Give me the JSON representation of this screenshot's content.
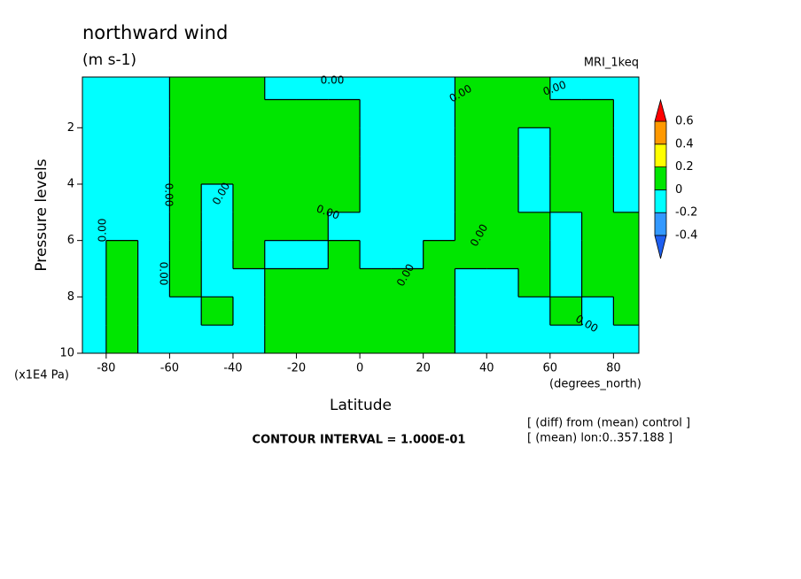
{
  "chart_data": {
    "type": "contour",
    "title": "northward wind",
    "subtitle": "(m s-1)",
    "dataset": "MRI_1keq",
    "x_label": "Latitude",
    "x_units": "(degrees_north)",
    "y_label": "Pressure levels",
    "y_units": "(x1E4 Pa)",
    "contour_interval": "CONTOUR INTERVAL = 1.000E-01",
    "notes": [
      "[ (diff) from (mean) control ]",
      "[ (mean) lon:0..357.188 ]"
    ],
    "contour_labels": [
      "0.00",
      "0.00",
      "0.00",
      "0.00",
      "0.00",
      "0.00",
      "0.00",
      "0.00",
      "0.00",
      "0.00",
      "0.00"
    ],
    "xlim": [
      -87.5,
      88
    ],
    "xticks": [
      -80,
      -60,
      -40,
      -20,
      0,
      20,
      40,
      60,
      80
    ],
    "ylim": [
      10,
      0.2
    ],
    "yticks": [
      2,
      4,
      6,
      8,
      10
    ],
    "levels": [
      -0.4,
      -0.2,
      0,
      0.2,
      0.4,
      0.6
    ],
    "colors": [
      "#1e5ff0",
      "#3399ff",
      "#00ffff",
      "#00e600",
      "#ffff00",
      "#ff9900",
      "#ff0000"
    ],
    "x": [
      -85,
      -75,
      -65,
      -55,
      -45,
      -35,
      -25,
      -15,
      -5,
      5,
      15,
      25,
      35,
      45,
      55,
      65,
      75,
      85
    ],
    "y": [
      0.5,
      1.5,
      2.5,
      3.5,
      4.5,
      5.5,
      6.5,
      7.5,
      8.5,
      9.5
    ],
    "z": [
      [
        -0.1,
        -0.1,
        -0.1,
        0.1,
        0.1,
        0.1,
        -0.1,
        -0.1,
        -0.1,
        -0.1,
        -0.1,
        -0.1,
        0.1,
        0.1,
        0.1,
        -0.1,
        -0.1,
        -0.1
      ],
      [
        -0.1,
        -0.1,
        -0.1,
        0.1,
        0.1,
        0.1,
        0.1,
        0.1,
        0.1,
        -0.1,
        -0.1,
        -0.1,
        0.1,
        0.1,
        0.1,
        0.1,
        0.1,
        -0.1
      ],
      [
        -0.1,
        -0.1,
        -0.1,
        0.1,
        0.1,
        0.1,
        0.1,
        0.1,
        0.1,
        -0.1,
        -0.1,
        -0.1,
        0.1,
        0.1,
        -0.1,
        0.1,
        0.1,
        -0.1
      ],
      [
        -0.1,
        -0.1,
        -0.1,
        0.1,
        0.1,
        0.1,
        0.1,
        0.1,
        0.1,
        -0.1,
        -0.1,
        -0.1,
        0.1,
        0.1,
        -0.1,
        0.1,
        0.1,
        -0.1
      ],
      [
        -0.1,
        -0.1,
        -0.1,
        0.1,
        -0.1,
        0.1,
        0.1,
        0.1,
        0.1,
        -0.1,
        -0.1,
        -0.1,
        0.1,
        0.1,
        -0.1,
        0.1,
        0.1,
        -0.1
      ],
      [
        -0.1,
        -0.1,
        -0.1,
        0.1,
        -0.1,
        0.1,
        0.1,
        0.1,
        -0.1,
        -0.1,
        -0.1,
        -0.1,
        0.1,
        0.1,
        0.1,
        -0.1,
        0.1,
        0.1
      ],
      [
        -0.1,
        0.1,
        -0.1,
        0.1,
        -0.1,
        0.1,
        -0.1,
        -0.1,
        0.1,
        -0.1,
        -0.1,
        0.1,
        0.1,
        0.1,
        0.1,
        -0.1,
        0.1,
        0.1
      ],
      [
        -0.1,
        0.1,
        -0.1,
        0.1,
        -0.1,
        -0.1,
        0.1,
        0.1,
        0.1,
        0.1,
        0.1,
        0.1,
        -0.1,
        -0.1,
        0.1,
        -0.1,
        0.1,
        0.1
      ],
      [
        -0.1,
        0.1,
        -0.1,
        -0.1,
        0.1,
        -0.1,
        0.1,
        0.1,
        0.1,
        0.1,
        0.1,
        0.1,
        -0.1,
        -0.1,
        -0.1,
        0.1,
        -0.1,
        0.1
      ],
      [
        -0.1,
        0.1,
        -0.1,
        -0.1,
        -0.1,
        -0.1,
        0.1,
        0.1,
        0.1,
        0.1,
        0.1,
        0.1,
        -0.1,
        -0.1,
        -0.1,
        -0.1,
        -0.1,
        -0.1
      ]
    ]
  }
}
